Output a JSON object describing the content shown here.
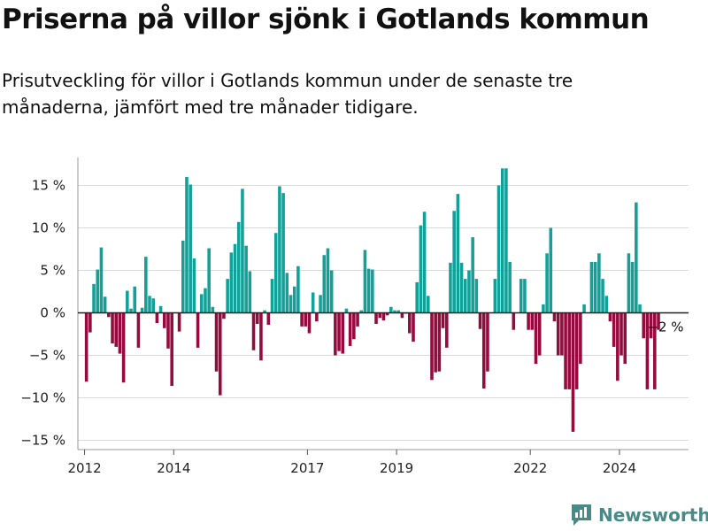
{
  "title": "Priserna på villor sjönk i Gotlands kommun",
  "subtitle": "Prisutveckling för villor i Gotlands kommun under de senaste tre månaderna, jämfört med tre månader tidigare.",
  "brand": "Newsworthy",
  "colors": {
    "positive": "#12a199",
    "negative": "#960b3e",
    "grid": "#d9d9d9",
    "zero": "#222222"
  },
  "chart_data": {
    "type": "bar",
    "title": "Priserna på villor sjönk i Gotlands kommun",
    "ylim": [
      -16,
      18
    ],
    "y_ticks": [
      15,
      10,
      5,
      0,
      -5,
      -10,
      -15
    ],
    "y_tick_labels": [
      "15 %",
      "10 %",
      "5 %",
      "0 %",
      "−5 %",
      "−10 %",
      "−15 %"
    ],
    "x_ticks": [
      "2012",
      "2014",
      "2017",
      "2019",
      "2022",
      "2024"
    ],
    "x_tick_positions": [
      2012,
      2014,
      2017,
      2019,
      2022,
      2024
    ],
    "x_range": [
      2011.85,
      2025.55
    ],
    "frequency": "monthly",
    "start": "2012-01",
    "values": [
      -8.1,
      -2.3,
      3.4,
      5.1,
      7.7,
      1.9,
      -0.5,
      -3.6,
      -4.0,
      -4.8,
      -8.2,
      2.6,
      0.5,
      3.1,
      -4.1,
      0.6,
      6.6,
      2.0,
      1.7,
      -1.2,
      0.8,
      -1.8,
      -4.2,
      -8.6,
      0.0,
      -2.2,
      8.5,
      16.0,
      15.1,
      6.4,
      -4.1,
      2.2,
      2.9,
      7.6,
      0.7,
      -6.9,
      -9.7,
      -0.7,
      4.0,
      7.1,
      8.1,
      10.7,
      14.6,
      7.9,
      4.9,
      -4.4,
      -1.3,
      -5.6,
      0.3,
      -1.4,
      4.0,
      9.4,
      14.9,
      14.1,
      4.7,
      2.1,
      3.1,
      5.5,
      -1.6,
      -1.6,
      -2.4,
      2.4,
      -1.0,
      2.1,
      6.8,
      7.6,
      5.0,
      -5.0,
      -4.5,
      -4.8,
      0.5,
      -3.9,
      -3.1,
      -1.6,
      0.3,
      7.4,
      5.2,
      5.1,
      -1.3,
      -0.6,
      -0.9,
      -0.3,
      0.7,
      0.3,
      0.3,
      -0.6,
      -0.1,
      -2.4,
      -3.4,
      3.6,
      10.3,
      11.9,
      2.0,
      -7.9,
      -7.0,
      -6.9,
      -1.8,
      -4.1,
      5.9,
      12.0,
      14.0,
      5.9,
      4.0,
      5.0,
      8.9,
      4.0,
      -1.9,
      -8.9,
      -6.9,
      0.0,
      4.0,
      15.0,
      17.0,
      17.0,
      6.0,
      -2.0,
      0.0,
      4.0,
      4.0,
      -2.0,
      -2.0,
      -6.0,
      -5.0,
      1.0,
      7.0,
      10.0,
      -1.0,
      -5.0,
      -5.0,
      -9.0,
      -9.0,
      -14.0,
      -9.0,
      -6.0,
      1.0,
      0.0,
      6.0,
      6.0,
      7.0,
      4.0,
      2.0,
      -1.0,
      -4.0,
      -8.0,
      -5.0,
      -6.0,
      7.0,
      6.0,
      13.0,
      1.0,
      -3.0,
      -9.0,
      -3.0,
      -9.0,
      -2.0
    ],
    "last_value_label": "−2 %"
  }
}
